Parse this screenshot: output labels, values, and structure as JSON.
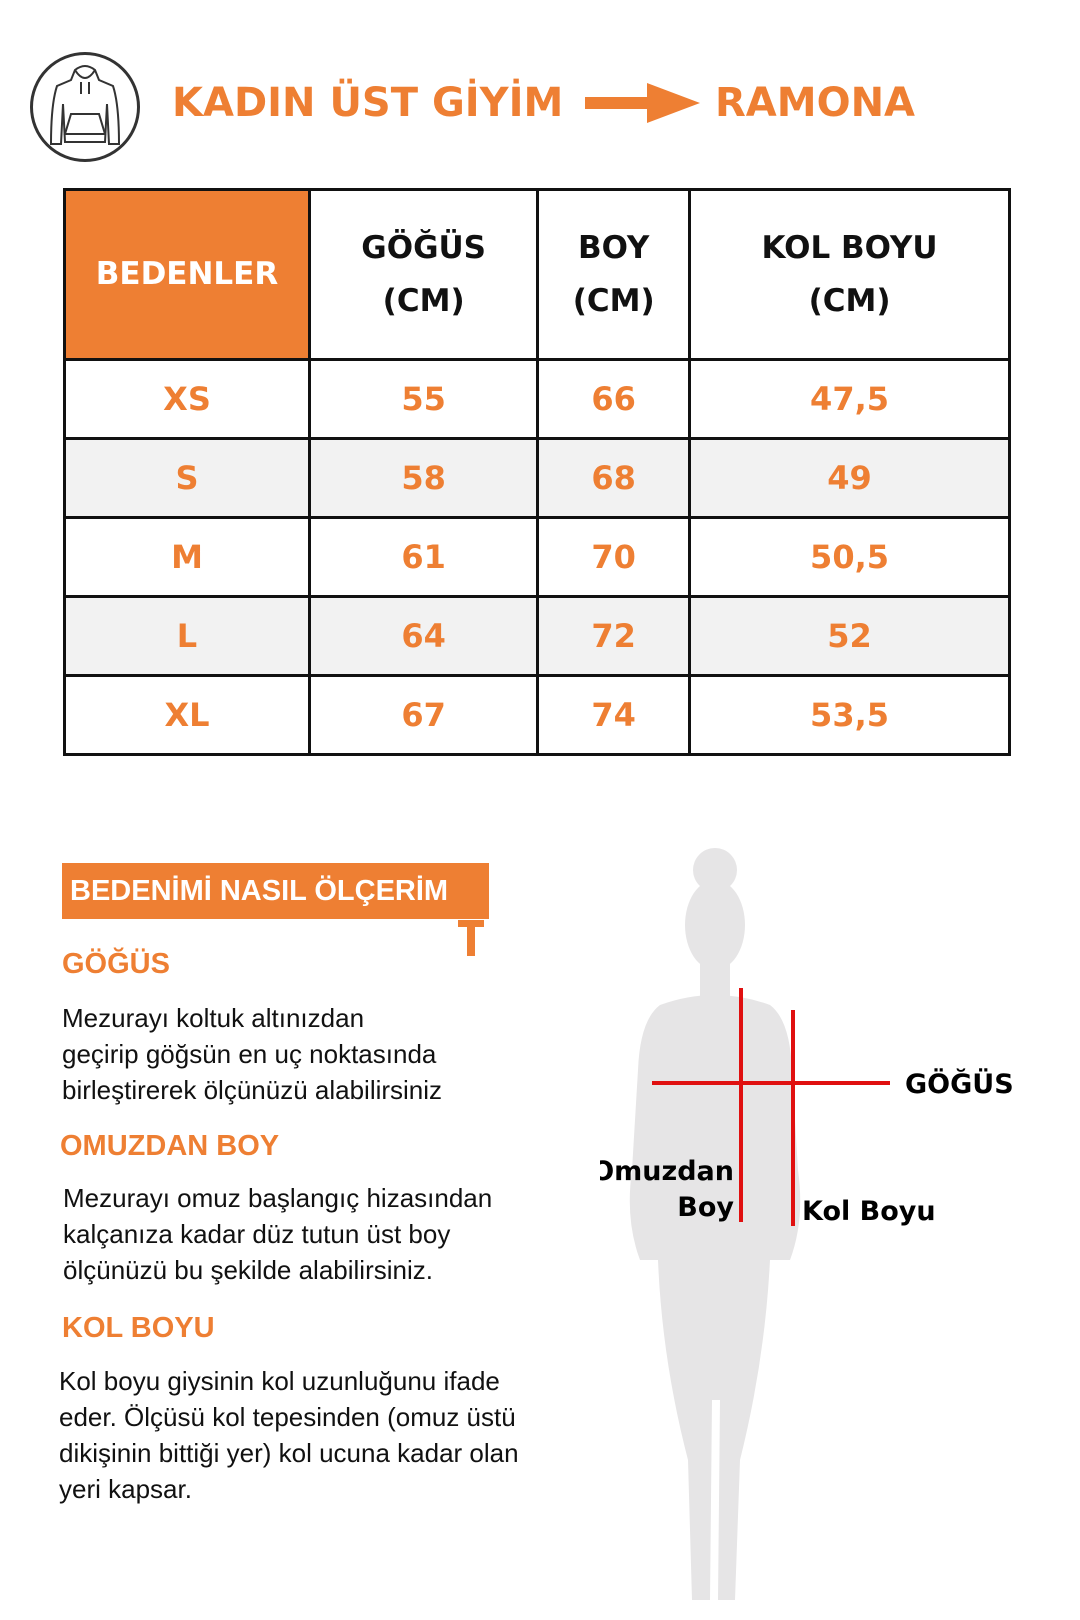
{
  "header": {
    "icon": "hoodie-icon",
    "title": "KADIN ÜST GİYİM",
    "arrow_icon": "arrow-right-icon",
    "brand": "RAMONA"
  },
  "table": {
    "headers": [
      [
        "BEDENLER"
      ],
      [
        "GÖĞÜS",
        "(CM)"
      ],
      [
        "BOY",
        "(CM)"
      ],
      [
        "KOL BOYU",
        "(CM)"
      ]
    ],
    "rows": [
      [
        "XS",
        "55",
        "66",
        "47,5"
      ],
      [
        "S",
        "58",
        "68",
        "49"
      ],
      [
        "M",
        "61",
        "70",
        "50,5"
      ],
      [
        "L",
        "64",
        "72",
        "52"
      ],
      [
        "XL",
        "67",
        "74",
        "53,5"
      ]
    ]
  },
  "guide": {
    "banner": "BEDENİMİ NASIL ÖLÇERİM",
    "sections": [
      {
        "title": "GÖĞÜS",
        "lines": [
          "Mezurayı koltuk altınızdan",
          "geçirip göğsün en uç noktasında",
          "birleştirerek ölçünüzü alabilirsiniz"
        ]
      },
      {
        "title": "OMUZDAN BOY",
        "lines": [
          "Mezurayı omuz başlangıç hizasından",
          "kalçanıza kadar düz tutun üst boy",
          "ölçünüzü bu şekilde alabilirsiniz."
        ]
      },
      {
        "title": "KOL BOYU",
        "lines": [
          "Kol boyu giysinin kol uzunluğunu ifade",
          "eder. Ölçüsü kol tepesinden (omuz üstü",
          "dikişinin bittiği yer) kol ucuna kadar olan",
          "yeri kapsar."
        ]
      }
    ]
  },
  "figure": {
    "labels": {
      "chest": "GÖĞÜS",
      "shoulder_1": "Omuzdan",
      "shoulder_2": "Boy",
      "sleeve": "Kol Boyu"
    }
  },
  "colors": {
    "accent": "#ee7f33",
    "measure": "#e01010",
    "silhouette": "#e6e5e6"
  }
}
